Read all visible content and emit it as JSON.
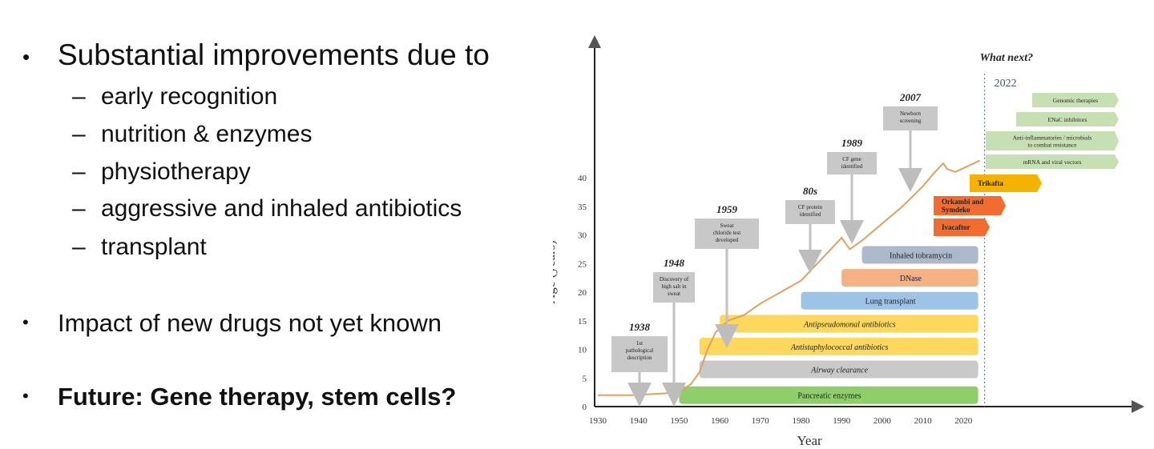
{
  "slide": {
    "bullet1": "Substantial improvements due to",
    "sub_items": [
      "early recognition",
      "nutrition & enzymes",
      "physiotherapy",
      "aggressive and inhaled antibiotics",
      "transplant"
    ],
    "dash": "–",
    "bullet_symbol": "•",
    "bullet2": "Impact of new drugs not yet known",
    "bullet3": "Future: Gene therapy, stem cells?"
  },
  "chart_data": {
    "type": "line",
    "title": "",
    "xlabel": "Year",
    "ylabel": "Age (years)",
    "xlim": [
      1930,
      2024
    ],
    "ylim": [
      0,
      42
    ],
    "x_ticks": [
      1930,
      1940,
      1950,
      1960,
      1970,
      1980,
      1990,
      2000,
      2010,
      2020
    ],
    "y_ticks": [
      0,
      5,
      10,
      15,
      20,
      25,
      30,
      35,
      40
    ],
    "series": [
      {
        "x": [
          1930,
          1938,
          1946,
          1950,
          1953,
          1955,
          1957,
          1959,
          1962,
          1966,
          1970,
          1975,
          1980,
          1984,
          1988,
          1990,
          1991,
          1992,
          1993,
          1995,
          2000,
          2005,
          2010,
          2013,
          2015,
          2016,
          2018,
          2021,
          2024
        ],
        "y": [
          2,
          2,
          2.3,
          2.5,
          4,
          6,
          10,
          13,
          15,
          16,
          18,
          20,
          22,
          25,
          28,
          29.5,
          28.5,
          27.5,
          28,
          29,
          32,
          35,
          38.5,
          41,
          42.5,
          41.5,
          41,
          42,
          43
        ]
      }
    ],
    "divider_year": 2024,
    "divider_label": "2022",
    "what_next": "What next?",
    "milestones": [
      {
        "year": 1938,
        "label": "1938",
        "text": [
          "1st",
          "pathological",
          "description"
        ]
      },
      {
        "year": 1948,
        "label": "1948",
        "text": [
          "Discovery of",
          "high salt in",
          "sweat"
        ]
      },
      {
        "year": 1959,
        "label": "1959",
        "text": [
          "Sweat",
          "chloride test",
          "developed"
        ]
      },
      {
        "year": 1982,
        "label": "80s",
        "text": [
          "CF protein",
          "identified"
        ]
      },
      {
        "year": 1989,
        "label": "1989",
        "text": [
          "CF gene",
          "identified"
        ]
      },
      {
        "year": 2007,
        "label": "2007",
        "text": [
          "Newborn",
          "screening"
        ]
      }
    ],
    "treatment_bars": [
      {
        "label": "Pancreatic enzymes",
        "start": 1950,
        "end": 2024,
        "y": 2,
        "color": "#8fce6b",
        "italic": false
      },
      {
        "label": "Airway clearance",
        "start": 1955,
        "end": 2024,
        "y": 6.5,
        "color": "#c9c9c9",
        "italic": true
      },
      {
        "label": "Antistaphylococcal antibiotics",
        "start": 1955,
        "end": 2024,
        "y": 10.5,
        "color": "#fdd85d",
        "italic": true
      },
      {
        "label": "Antipseudomonal antibiotics",
        "start": 1960,
        "end": 2024,
        "y": 14.5,
        "color": "#fdd85d",
        "italic": true
      },
      {
        "label": "Lung transplant",
        "start": 1980,
        "end": 2024,
        "y": 18.5,
        "color": "#9dc3e6",
        "italic": false
      },
      {
        "label": "DNase",
        "start": 1990,
        "end": 2024,
        "y": 22.5,
        "color": "#f4b183",
        "italic": false
      },
      {
        "label": "Inhaled tobramycin",
        "start": 1995,
        "end": 2024,
        "y": 26.5,
        "color": "#acb9ca",
        "italic": false
      }
    ],
    "modulators": [
      {
        "label": "Ivacaftor",
        "color": "#f26b2f"
      },
      {
        "label": [
          "Orkambi and",
          "Symdeko"
        ],
        "color": "#f26b2f"
      },
      {
        "label": "Trikafta",
        "color": "#f5b300"
      }
    ],
    "future_therapies": [
      {
        "label": "Genomic therapies"
      },
      {
        "label": "ENaC inhibitors"
      },
      {
        "label": [
          "Anti-inflammatories / microbials",
          "to combat resistance"
        ]
      },
      {
        "label": "mRNA and viral vectors"
      }
    ],
    "grid": false
  }
}
